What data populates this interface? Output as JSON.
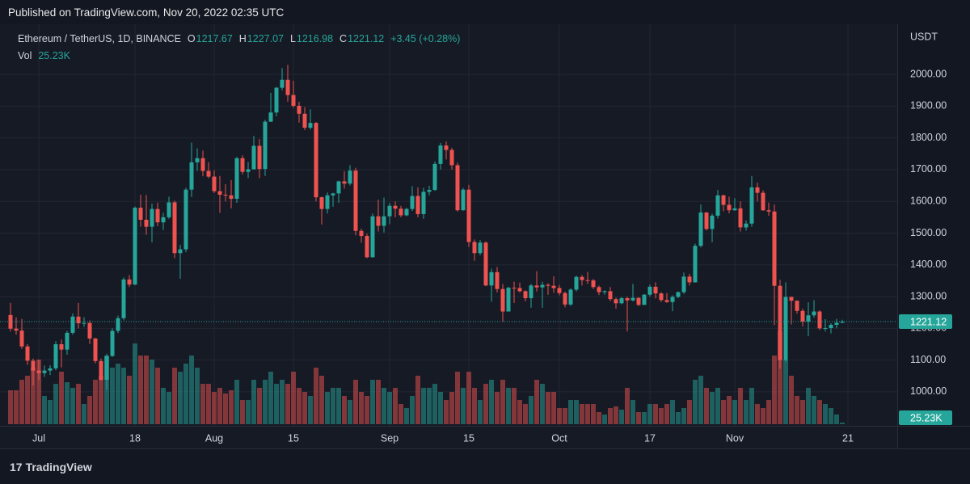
{
  "header": {
    "published": "Published on TradingView.com, Nov 20, 2022 02:35 UTC"
  },
  "footer": {
    "brand": "TradingView"
  },
  "chart_data": {
    "type": "candlestick",
    "symbol": "Ethereum / TetherUS, 1D, BINANCE",
    "legend_labels": {
      "open": "O",
      "high": "H",
      "low": "L",
      "close": "C",
      "volume": "Vol"
    },
    "change": "+3.45 (+0.28%)",
    "currency": "USDT",
    "x": [
      "2022-06-26",
      "2022-06-27",
      "2022-06-28",
      "2022-06-29",
      "2022-06-30",
      "2022-07-01",
      "2022-07-02",
      "2022-07-03",
      "2022-07-04",
      "2022-07-05",
      "2022-07-06",
      "2022-07-07",
      "2022-07-08",
      "2022-07-09",
      "2022-07-10",
      "2022-07-11",
      "2022-07-12",
      "2022-07-13",
      "2022-07-14",
      "2022-07-15",
      "2022-07-16",
      "2022-07-17",
      "2022-07-18",
      "2022-07-19",
      "2022-07-20",
      "2022-07-21",
      "2022-07-22",
      "2022-07-23",
      "2022-07-24",
      "2022-07-25",
      "2022-07-26",
      "2022-07-27",
      "2022-07-28",
      "2022-07-29",
      "2022-07-30",
      "2022-07-31",
      "2022-08-01",
      "2022-08-02",
      "2022-08-03",
      "2022-08-04",
      "2022-08-05",
      "2022-08-06",
      "2022-08-07",
      "2022-08-08",
      "2022-08-09",
      "2022-08-10",
      "2022-08-11",
      "2022-08-12",
      "2022-08-13",
      "2022-08-14",
      "2022-08-15",
      "2022-08-16",
      "2022-08-17",
      "2022-08-18",
      "2022-08-19",
      "2022-08-20",
      "2022-08-21",
      "2022-08-22",
      "2022-08-23",
      "2022-08-24",
      "2022-08-25",
      "2022-08-26",
      "2022-08-27",
      "2022-08-28",
      "2022-08-29",
      "2022-08-30",
      "2022-08-31",
      "2022-09-01",
      "2022-09-02",
      "2022-09-03",
      "2022-09-04",
      "2022-09-05",
      "2022-09-06",
      "2022-09-07",
      "2022-09-08",
      "2022-09-09",
      "2022-09-10",
      "2022-09-11",
      "2022-09-12",
      "2022-09-13",
      "2022-09-14",
      "2022-09-15",
      "2022-09-16",
      "2022-09-17",
      "2022-09-18",
      "2022-09-19",
      "2022-09-20",
      "2022-09-21",
      "2022-09-22",
      "2022-09-23",
      "2022-09-24",
      "2022-09-25",
      "2022-09-26",
      "2022-09-27",
      "2022-09-28",
      "2022-09-29",
      "2022-09-30",
      "2022-10-01",
      "2022-10-02",
      "2022-10-03",
      "2022-10-04",
      "2022-10-05",
      "2022-10-06",
      "2022-10-07",
      "2022-10-08",
      "2022-10-09",
      "2022-10-10",
      "2022-10-11",
      "2022-10-12",
      "2022-10-13",
      "2022-10-14",
      "2022-10-15",
      "2022-10-16",
      "2022-10-17",
      "2022-10-18",
      "2022-10-19",
      "2022-10-20",
      "2022-10-21",
      "2022-10-22",
      "2022-10-23",
      "2022-10-24",
      "2022-10-25",
      "2022-10-26",
      "2022-10-27",
      "2022-10-28",
      "2022-10-29",
      "2022-10-30",
      "2022-10-31",
      "2022-11-01",
      "2022-11-02",
      "2022-11-03",
      "2022-11-04",
      "2022-11-05",
      "2022-11-06",
      "2022-11-07",
      "2022-11-08",
      "2022-11-09",
      "2022-11-10",
      "2022-11-11",
      "2022-11-12",
      "2022-11-13",
      "2022-11-14",
      "2022-11-15",
      "2022-11-16",
      "2022-11-17",
      "2022-11-18",
      "2022-11-19",
      "2022-11-20"
    ],
    "open": [
      1242,
      1199,
      1193,
      1143,
      1098,
      1067,
      1059,
      1067,
      1074,
      1150,
      1133,
      1186,
      1237,
      1216,
      1217,
      1168,
      1097,
      1038,
      1113,
      1192,
      1232,
      1354,
      1338,
      1580,
      1542,
      1520,
      1576,
      1534,
      1550,
      1597,
      1437,
      1449,
      1637,
      1723,
      1736,
      1696,
      1678,
      1632,
      1621,
      1619,
      1608,
      1736,
      1693,
      1701,
      1775,
      1702,
      1851,
      1880,
      1958,
      1983,
      1935,
      1901,
      1876,
      1832,
      1847,
      1613,
      1576,
      1619,
      1625,
      1663,
      1656,
      1697,
      1507,
      1491,
      1424,
      1553,
      1523,
      1553,
      1586,
      1577,
      1556,
      1576,
      1617,
      1560,
      1630,
      1636,
      1718,
      1776,
      1762,
      1714,
      1572,
      1637,
      1472,
      1437,
      1470,
      1335,
      1377,
      1324,
      1253,
      1328,
      1327,
      1317,
      1295,
      1335,
      1329,
      1337,
      1334,
      1327,
      1311,
      1275,
      1322,
      1362,
      1352,
      1351,
      1330,
      1314,
      1317,
      1292,
      1279,
      1295,
      1288,
      1296,
      1274,
      1306,
      1331,
      1310,
      1289,
      1283,
      1299,
      1314,
      1363,
      1345,
      1460,
      1565,
      1513,
      1555,
      1619,
      1589,
      1572,
      1578,
      1518,
      1530,
      1644,
      1627,
      1572,
      1568,
      1334,
      1100,
      1299,
      1287,
      1255,
      1221,
      1241,
      1253,
      1200,
      1201,
      1211,
      1217.67
    ],
    "high": [
      1280,
      1235,
      1230,
      1150,
      1105,
      1101,
      1083,
      1084,
      1160,
      1165,
      1192,
      1247,
      1280,
      1235,
      1225,
      1170,
      1105,
      1120,
      1200,
      1240,
      1360,
      1368,
      1584,
      1621,
      1620,
      1593,
      1596,
      1564,
      1615,
      1602,
      1463,
      1643,
      1785,
      1767,
      1760,
      1723,
      1698,
      1680,
      1654,
      1667,
      1740,
      1745,
      1724,
      1806,
      1796,
      1857,
      1942,
      1960,
      2020,
      2030,
      1980,
      1914,
      1897,
      1890,
      1850,
      1615,
      1628,
      1627,
      1665,
      1695,
      1714,
      1706,
      1514,
      1498,
      1562,
      1605,
      1612,
      1595,
      1600,
      1586,
      1580,
      1648,
      1644,
      1643,
      1649,
      1726,
      1784,
      1789,
      1769,
      1722,
      1642,
      1652,
      1480,
      1478,
      1474,
      1388,
      1393,
      1340,
      1331,
      1347,
      1344,
      1320,
      1340,
      1380,
      1347,
      1342,
      1364,
      1337,
      1316,
      1326,
      1366,
      1368,
      1378,
      1356,
      1335,
      1320,
      1330,
      1297,
      1299,
      1300,
      1340,
      1298,
      1308,
      1338,
      1345,
      1314,
      1311,
      1304,
      1316,
      1376,
      1372,
      1467,
      1590,
      1566,
      1561,
      1636,
      1621,
      1615,
      1610,
      1600,
      1540,
      1680,
      1659,
      1635,
      1596,
      1590,
      1353,
      1345,
      1300,
      1288,
      1262,
      1282,
      1289,
      1257,
      1229,
      1216,
      1230,
      1227.07
    ],
    "low": [
      1190,
      1180,
      1135,
      1085,
      1020,
      1037,
      1047,
      1053,
      1068,
      1077,
      1117,
      1180,
      1200,
      1205,
      1151,
      1090,
      1035,
      1006,
      1110,
      1185,
      1225,
      1330,
      1336,
      1520,
      1495,
      1471,
      1522,
      1510,
      1545,
      1421,
      1356,
      1440,
      1614,
      1696,
      1679,
      1673,
      1626,
      1564,
      1600,
      1578,
      1595,
      1685,
      1673,
      1700,
      1673,
      1680,
      1850,
      1868,
      1950,
      1914,
      1895,
      1848,
      1825,
      1826,
      1600,
      1527,
      1562,
      1583,
      1595,
      1640,
      1650,
      1493,
      1470,
      1421,
      1423,
      1505,
      1502,
      1528,
      1550,
      1550,
      1553,
      1570,
      1550,
      1545,
      1619,
      1633,
      1700,
      1732,
      1700,
      1568,
      1571,
      1456,
      1413,
      1430,
      1333,
      1284,
      1313,
      1220,
      1260,
      1280,
      1313,
      1285,
      1265,
      1316,
      1265,
      1306,
      1312,
      1304,
      1266,
      1271,
      1316,
      1335,
      1340,
      1324,
      1305,
      1306,
      1286,
      1262,
      1276,
      1190,
      1285,
      1270,
      1273,
      1300,
      1294,
      1283,
      1280,
      1254,
      1295,
      1308,
      1335,
      1344,
      1455,
      1508,
      1471,
      1546,
      1569,
      1562,
      1570,
      1505,
      1508,
      1520,
      1600,
      1570,
      1555,
      1210,
      1073,
      1095,
      1212,
      1246,
      1206,
      1175,
      1233,
      1195,
      1190,
      1184,
      1200,
      1216.98
    ],
    "close": [
      1199,
      1193,
      1143,
      1098,
      1067,
      1059,
      1067,
      1074,
      1150,
      1133,
      1186,
      1237,
      1216,
      1217,
      1168,
      1097,
      1038,
      1113,
      1192,
      1232,
      1354,
      1338,
      1580,
      1542,
      1520,
      1576,
      1534,
      1550,
      1597,
      1437,
      1449,
      1637,
      1723,
      1736,
      1696,
      1678,
      1632,
      1621,
      1619,
      1608,
      1736,
      1693,
      1701,
      1775,
      1702,
      1851,
      1880,
      1958,
      1983,
      1935,
      1901,
      1876,
      1832,
      1847,
      1613,
      1576,
      1619,
      1625,
      1663,
      1656,
      1697,
      1507,
      1491,
      1424,
      1553,
      1523,
      1553,
      1586,
      1577,
      1556,
      1576,
      1617,
      1560,
      1630,
      1636,
      1718,
      1776,
      1762,
      1714,
      1572,
      1637,
      1472,
      1437,
      1470,
      1335,
      1377,
      1324,
      1253,
      1328,
      1327,
      1317,
      1295,
      1335,
      1329,
      1337,
      1334,
      1327,
      1311,
      1275,
      1322,
      1362,
      1352,
      1351,
      1330,
      1314,
      1317,
      1292,
      1279,
      1295,
      1288,
      1296,
      1274,
      1306,
      1331,
      1310,
      1289,
      1283,
      1299,
      1314,
      1363,
      1345,
      1460,
      1565,
      1513,
      1555,
      1619,
      1589,
      1572,
      1578,
      1518,
      1530,
      1644,
      1627,
      1572,
      1568,
      1334,
      1100,
      1299,
      1287,
      1255,
      1221,
      1241,
      1253,
      1200,
      1201,
      1211,
      1217.67,
      1221.12
    ],
    "volume": [
      525,
      525,
      688,
      750,
      875,
      1000,
      438,
      375,
      625,
      813,
      650,
      563,
      625,
      313,
      438,
      688,
      750,
      1063,
      875,
      938,
      875,
      750,
      1250,
      1063,
      1063,
      1000,
      875,
      563,
      500,
      875,
      813,
      938,
      1063,
      875,
      625,
      625,
      500,
      563,
      475,
      525,
      688,
      375,
      375,
      688,
      563,
      688,
      813,
      625,
      688,
      625,
      813,
      563,
      500,
      438,
      875,
      750,
      500,
      563,
      563,
      438,
      375,
      688,
      500,
      438,
      688,
      688,
      563,
      500,
      563,
      313,
      250,
      438,
      750,
      563,
      563,
      625,
      500,
      375,
      500,
      813,
      563,
      813,
      563,
      375,
      625,
      688,
      500,
      688,
      563,
      563,
      375,
      313,
      438,
      688,
      625,
      500,
      500,
      250,
      250,
      375,
      375,
      313,
      313,
      313,
      188,
      150,
      250,
      275,
      225,
      563,
      375,
      188,
      188,
      313,
      313,
      250,
      313,
      375,
      188,
      250,
      375,
      688,
      750,
      563,
      500,
      563,
      375,
      438,
      375,
      563,
      375,
      563,
      313,
      250,
      375,
      1063,
      1438,
      1000,
      750,
      438,
      375,
      563,
      438,
      375,
      313,
      250,
      150,
      25.23
    ],
    "volume_last_label": "25.23K",
    "up_color": "#26a69a",
    "down_color": "#ef5350",
    "ylim": [
      898,
      2158
    ],
    "yticks": [
      {
        "value": 1000,
        "label": "1000.00"
      },
      {
        "value": 1100,
        "label": "1100.00"
      },
      {
        "value": 1200,
        "label": "1200.00"
      },
      {
        "value": 1300,
        "label": "1300.00"
      },
      {
        "value": 1400,
        "label": "1400.00"
      },
      {
        "value": 1500,
        "label": "1500.00"
      },
      {
        "value": 1600,
        "label": "1600.00"
      },
      {
        "value": 1700,
        "label": "1700.00"
      },
      {
        "value": 1800,
        "label": "1800.00"
      },
      {
        "value": 1900,
        "label": "1900.00"
      },
      {
        "value": 2000,
        "label": "2000.00"
      }
    ],
    "xticks": [
      {
        "value": "2022-07-01",
        "label": "Jul"
      },
      {
        "value": "2022-07-18",
        "label": "18"
      },
      {
        "value": "2022-08-01",
        "label": "Aug"
      },
      {
        "value": "2022-08-15",
        "label": "15"
      },
      {
        "value": "2022-09-01",
        "label": "Sep"
      },
      {
        "value": "2022-09-15",
        "label": "15"
      },
      {
        "value": "2022-10-01",
        "label": "Oct"
      },
      {
        "value": "2022-10-17",
        "label": "17"
      },
      {
        "value": "2022-11-01",
        "label": "Nov"
      },
      {
        "value": "2022-11-21",
        "label": "21"
      }
    ],
    "grid": true
  }
}
